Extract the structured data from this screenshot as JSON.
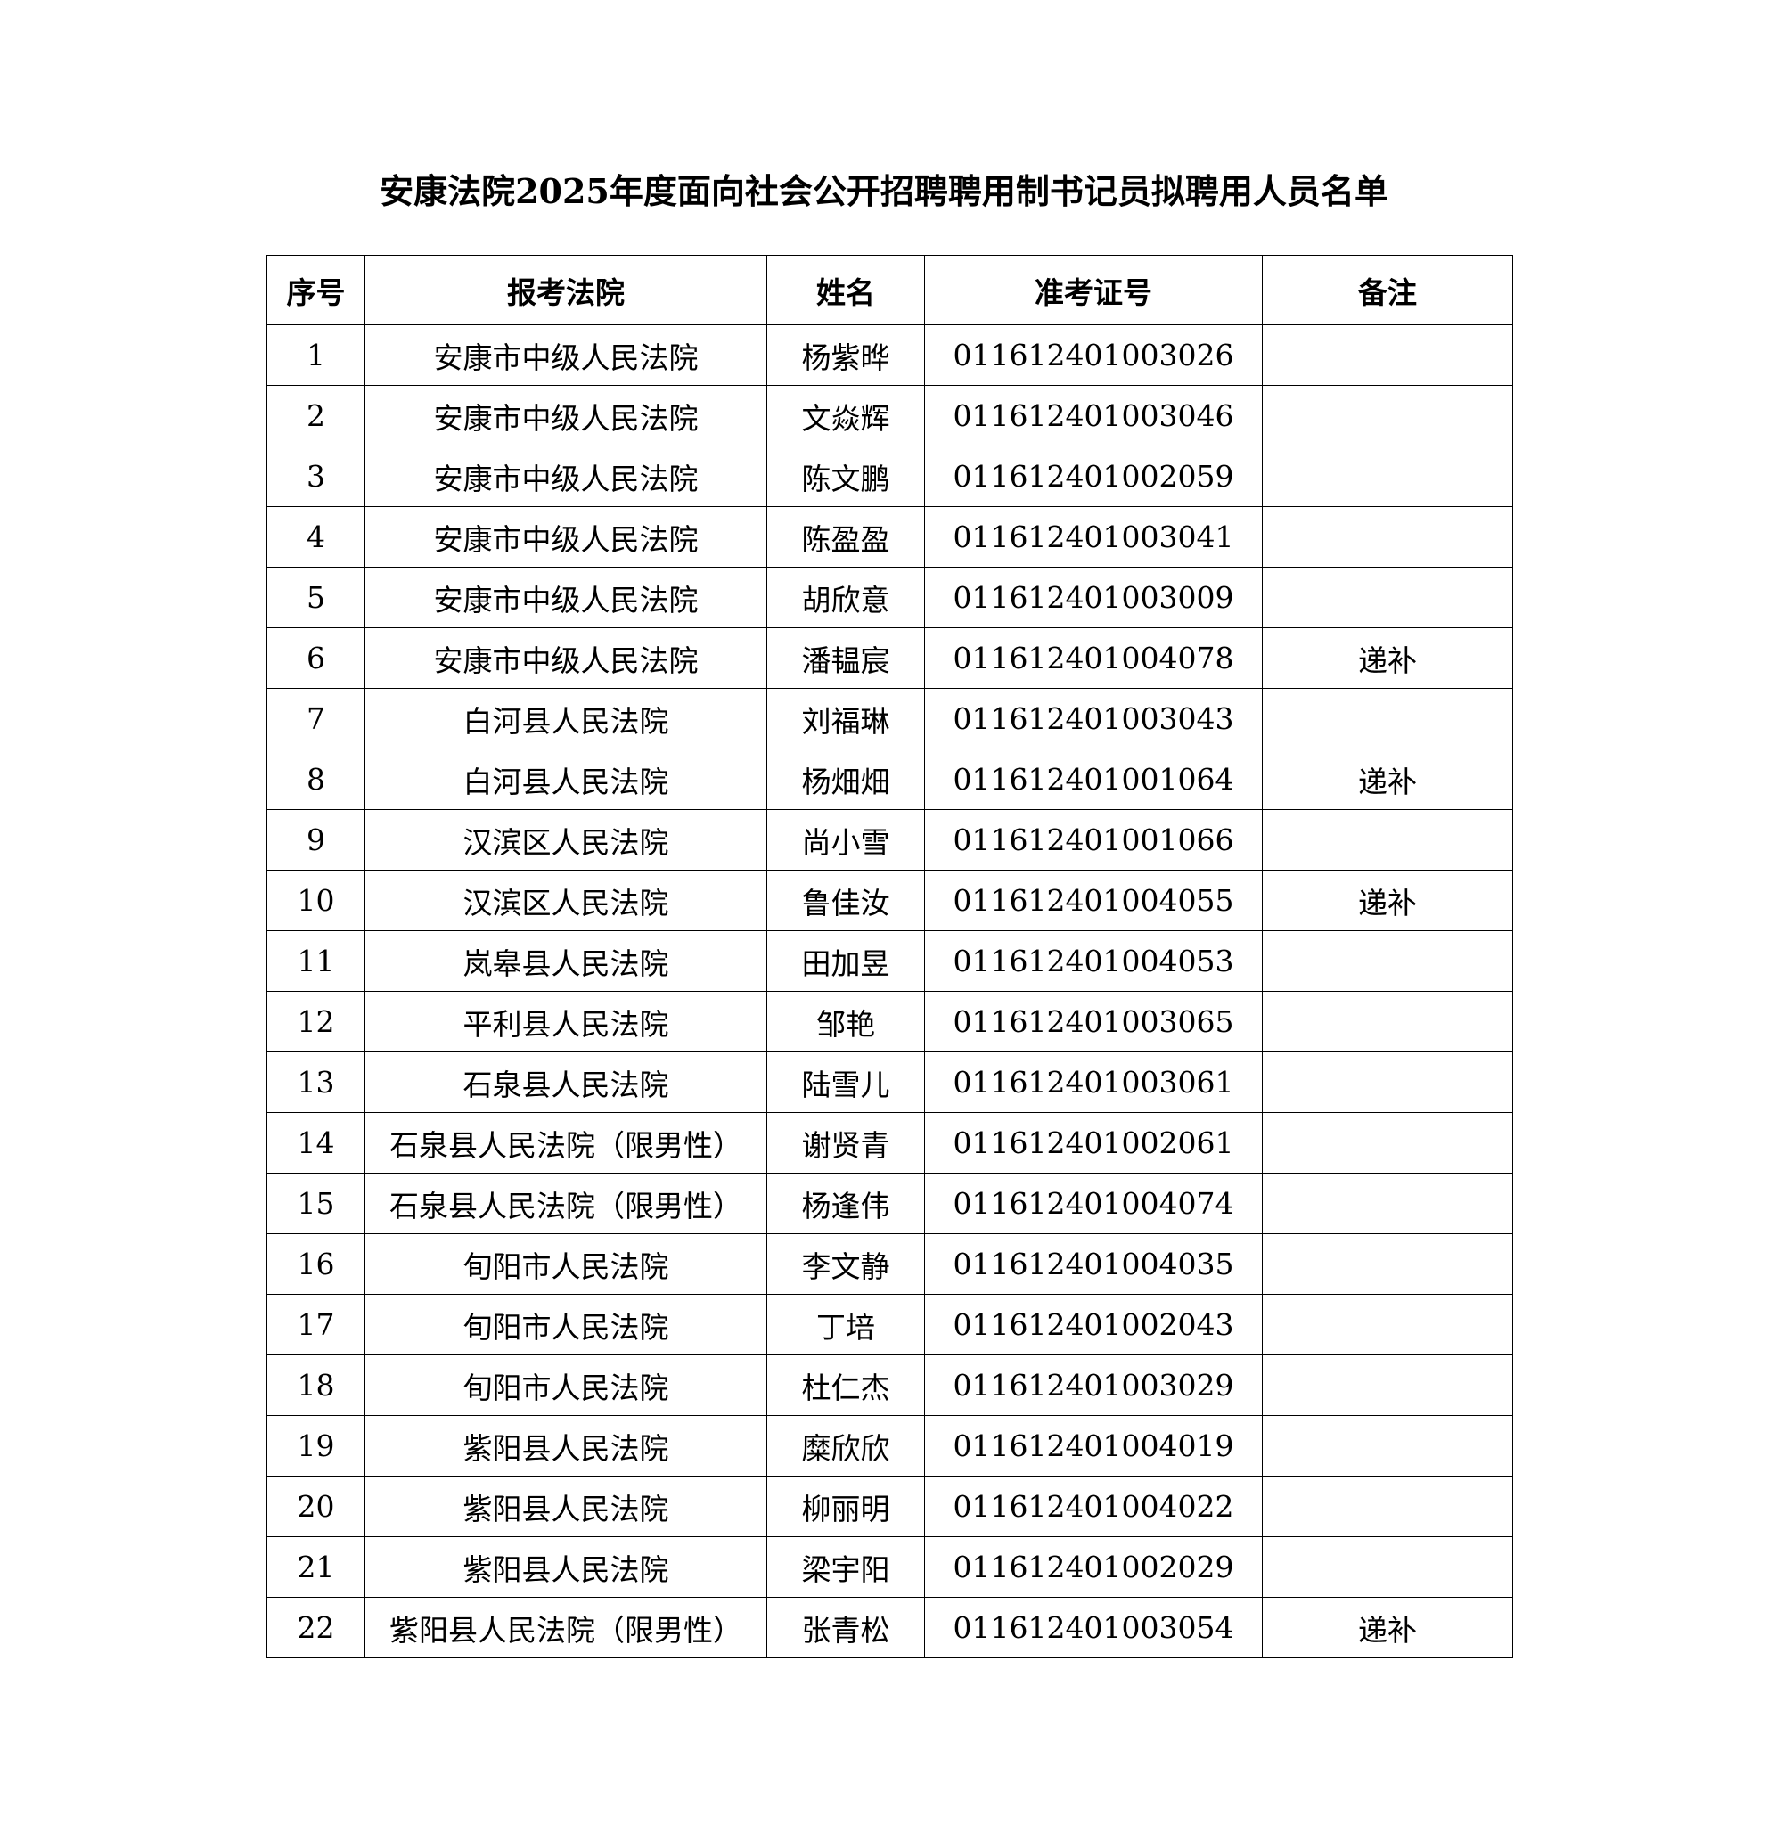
{
  "title": "安康法院2025年度面向社会公开招聘聘用制书记员拟聘用人员名单",
  "table": {
    "headers": [
      "序号",
      "报考法院",
      "姓名",
      "准考证号",
      "备注"
    ],
    "rows": [
      [
        "1",
        "安康市中级人民法院",
        "杨紫晔",
        "011612401003026",
        ""
      ],
      [
        "2",
        "安康市中级人民法院",
        "文焱辉",
        "011612401003046",
        ""
      ],
      [
        "3",
        "安康市中级人民法院",
        "陈文鹏",
        "011612401002059",
        ""
      ],
      [
        "4",
        "安康市中级人民法院",
        "陈盈盈",
        "011612401003041",
        ""
      ],
      [
        "5",
        "安康市中级人民法院",
        "胡欣意",
        "011612401003009",
        ""
      ],
      [
        "6",
        "安康市中级人民法院",
        "潘韫宸",
        "011612401004078",
        "递补"
      ],
      [
        "7",
        "白河县人民法院",
        "刘福琳",
        "011612401003043",
        ""
      ],
      [
        "8",
        "白河县人民法院",
        "杨畑畑",
        "011612401001064",
        "递补"
      ],
      [
        "9",
        "汉滨区人民法院",
        "尚小雪",
        "011612401001066",
        ""
      ],
      [
        "10",
        "汉滨区人民法院",
        "鲁佳汝",
        "011612401004055",
        "递补"
      ],
      [
        "11",
        "岚皋县人民法院",
        "田加昱",
        "011612401004053",
        ""
      ],
      [
        "12",
        "平利县人民法院",
        "邹艳",
        "011612401003065",
        ""
      ],
      [
        "13",
        "石泉县人民法院",
        "陆雪儿",
        "011612401003061",
        ""
      ],
      [
        "14",
        "石泉县人民法院（限男性）",
        "谢贤青",
        "011612401002061",
        ""
      ],
      [
        "15",
        "石泉县人民法院（限男性）",
        "杨逢伟",
        "011612401004074",
        ""
      ],
      [
        "16",
        "旬阳市人民法院",
        "李文静",
        "011612401004035",
        ""
      ],
      [
        "17",
        "旬阳市人民法院",
        "丁培",
        "011612401002043",
        ""
      ],
      [
        "18",
        "旬阳市人民法院",
        "杜仁杰",
        "011612401003029",
        ""
      ],
      [
        "19",
        "紫阳县人民法院",
        "糜欣欣",
        "011612401004019",
        ""
      ],
      [
        "20",
        "紫阳县人民法院",
        "柳丽明",
        "011612401004022",
        ""
      ],
      [
        "21",
        "紫阳县人民法院",
        "梁宇阳",
        "011612401002029",
        ""
      ],
      [
        "22",
        "紫阳县人民法院（限男性）",
        "张青松",
        "011612401003054",
        "递补"
      ]
    ]
  }
}
